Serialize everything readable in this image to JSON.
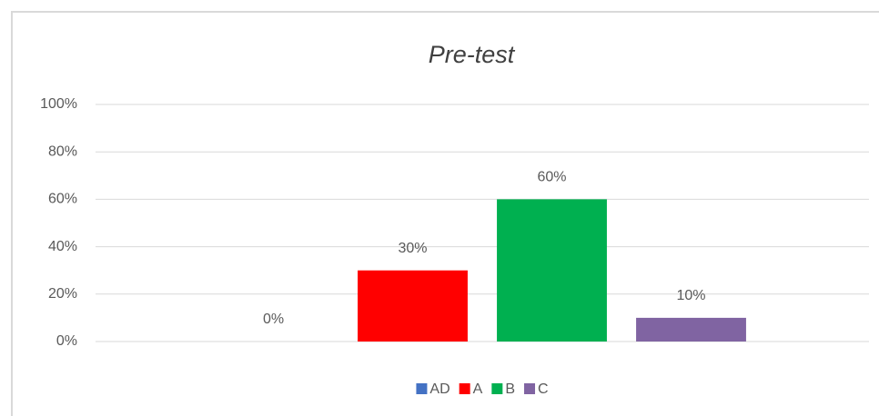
{
  "chart_data": {
    "type": "bar",
    "title": "Pre-test",
    "categories": [
      null
    ],
    "series": [
      {
        "name": "AD",
        "color": "#4472c4",
        "values": [
          0
        ],
        "value_labels": [
          "0%"
        ]
      },
      {
        "name": "A",
        "color": "#ff0000",
        "values": [
          30
        ],
        "value_labels": [
          "30%"
        ]
      },
      {
        "name": "B",
        "color": "#00b050",
        "values": [
          60
        ],
        "value_labels": [
          "60%"
        ]
      },
      {
        "name": "C",
        "color": "#8064a2",
        "values": [
          10
        ],
        "value_labels": [
          "10%"
        ]
      }
    ],
    "ylim": [
      0,
      100
    ],
    "yticks": [
      {
        "value": 0,
        "label": "0%"
      },
      {
        "value": 20,
        "label": "20%"
      },
      {
        "value": 40,
        "label": "40%"
      },
      {
        "value": 60,
        "label": "60%"
      },
      {
        "value": 80,
        "label": "80%"
      },
      {
        "value": 100,
        "label": "100%"
      }
    ],
    "grid": true,
    "legend": "bottom"
  }
}
